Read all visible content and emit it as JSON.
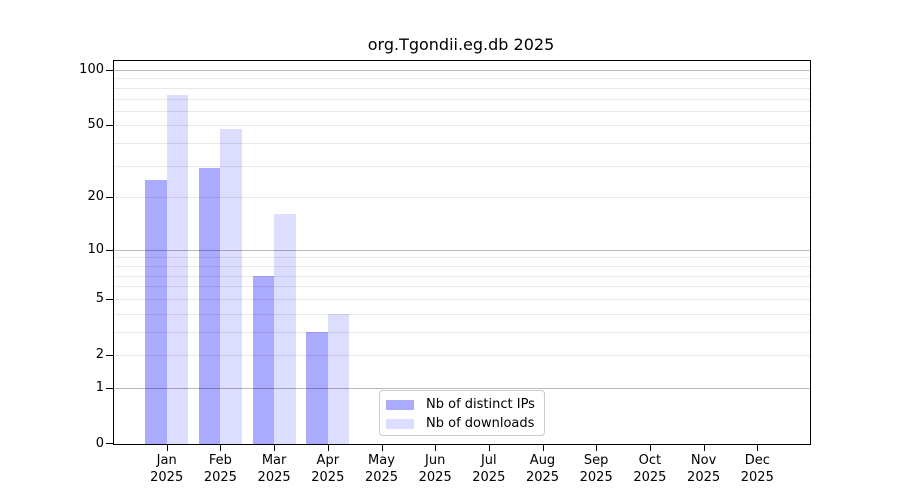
{
  "title": "org.Tgondii.eg.db 2025",
  "legend": [
    {
      "label": "Nb of distinct IPs",
      "color": "#aaaaff"
    },
    {
      "label": "Nb of downloads",
      "color": "#ddddff"
    }
  ],
  "chart_data": {
    "type": "bar",
    "title": "org.Tgondii.eg.db 2025",
    "categories": [
      "Jan 2025",
      "Feb 2025",
      "Mar 2025",
      "Apr 2025",
      "May 2025",
      "Jun 2025",
      "Jul 2025",
      "Aug 2025",
      "Sep 2025",
      "Oct 2025",
      "Nov 2025",
      "Dec 2025"
    ],
    "series": [
      {
        "name": "Nb of distinct IPs",
        "color": "#aaaaff",
        "values": [
          25,
          29,
          7,
          3,
          0,
          0,
          0,
          0,
          0,
          0,
          0,
          0
        ]
      },
      {
        "name": "Nb of downloads",
        "color": "#ddddff",
        "values": [
          73,
          48,
          16,
          4,
          0,
          0,
          0,
          0,
          0,
          0,
          0,
          0
        ]
      }
    ],
    "xlabel": "",
    "ylabel": "",
    "yscale": "log1p",
    "ylim": [
      0,
      100
    ],
    "yticks": [
      0,
      1,
      2,
      5,
      10,
      20,
      50,
      100
    ],
    "grid": "horizontal-major-and-minor",
    "legend_position": "inside-bottom-center-left"
  }
}
